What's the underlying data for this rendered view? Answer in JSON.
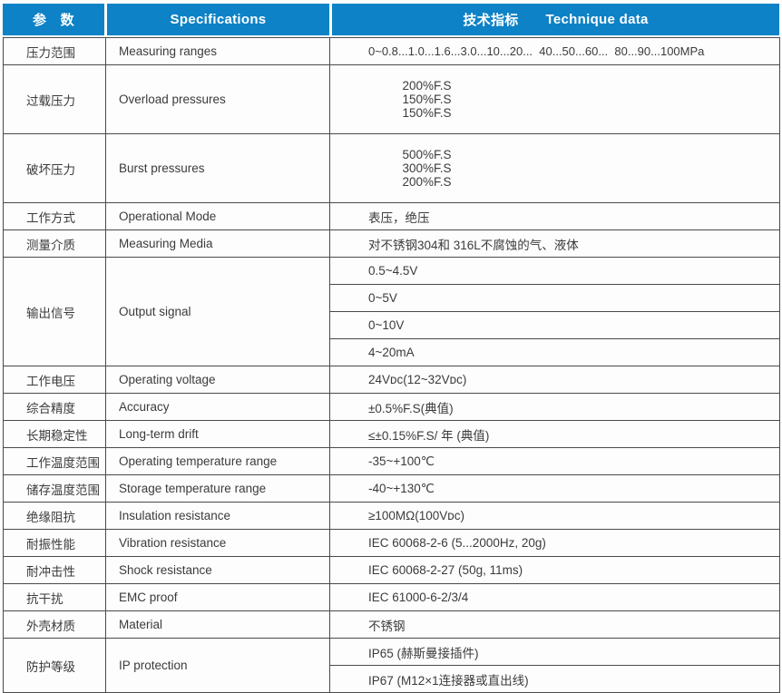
{
  "header": {
    "param": "参　数",
    "spec": "Specifications",
    "tech_cn": "技术指标",
    "tech_en": "Technique data"
  },
  "colors": {
    "header_bg": "#0e82c6",
    "header_text": "#ffffff",
    "border": "#4a4a4a",
    "body_text": "#3b3b3b"
  },
  "rows": [
    {
      "cn": "压力范围",
      "en": "Measuring ranges",
      "value": "0~0.8...1.0...1.6...3.0...10...20...  40...50...60...  80...90...100MPa"
    },
    {
      "cn": "过载压力",
      "en": "Overload pressures",
      "values": [
        "200%F.S",
        "150%F.S",
        "150%F.S"
      ]
    },
    {
      "cn": "破坏压力",
      "en": "Burst pressures",
      "values": [
        "500%F.S",
        "300%F.S",
        "200%F.S"
      ]
    },
    {
      "cn": "工作方式",
      "en": "Operational Mode",
      "value": "表压，绝压"
    },
    {
      "cn": "测量介质",
      "en": "Measuring Media",
      "value": "对不锈钢304和 316L不腐蚀的气、液体"
    },
    {
      "cn": "输出信号",
      "en": "Output signal",
      "values": [
        "0.5~4.5V",
        "0~5V",
        "0~10V",
        "4~20mA"
      ]
    },
    {
      "cn": "工作电压",
      "en": "Operating voltage",
      "value": "24Vᴅᴄ(12~32Vᴅᴄ)"
    },
    {
      "cn": "综合精度",
      "en": "Accuracy",
      "value": "±0.5%F.S(典值)"
    },
    {
      "cn": "长期稳定性",
      "en": "Long-term drift",
      "value": "≤±0.15%F.S/ 年 (典值)"
    },
    {
      "cn": "工作温度范围",
      "en": "Operating temperature range",
      "value": "-35~+100℃"
    },
    {
      "cn": "储存温度范围",
      "en": "Storage temperature range",
      "value": "-40~+130℃"
    },
    {
      "cn": "绝缘阻抗",
      "en": "Insulation resistance",
      "value": "≥100MΩ(100Vᴅᴄ)"
    },
    {
      "cn": "耐振性能",
      "en": "Vibration resistance",
      "value": "IEC 60068-2-6 (5...2000Hz, 20g)"
    },
    {
      "cn": "耐冲击性",
      "en": "Shock resistance",
      "value": "IEC 60068-2-27 (50g, 11ms)"
    },
    {
      "cn": "抗干扰",
      "en": "EMC proof",
      "value": "IEC 61000-6-2/3/4"
    },
    {
      "cn": "外壳材质",
      "en": "Material",
      "value": "不锈钢"
    },
    {
      "cn": "防护等级",
      "en": "IP protection",
      "values": [
        "IP65 (赫斯曼接插件)",
        "IP67 (M12×1连接器或直出线)"
      ]
    }
  ]
}
